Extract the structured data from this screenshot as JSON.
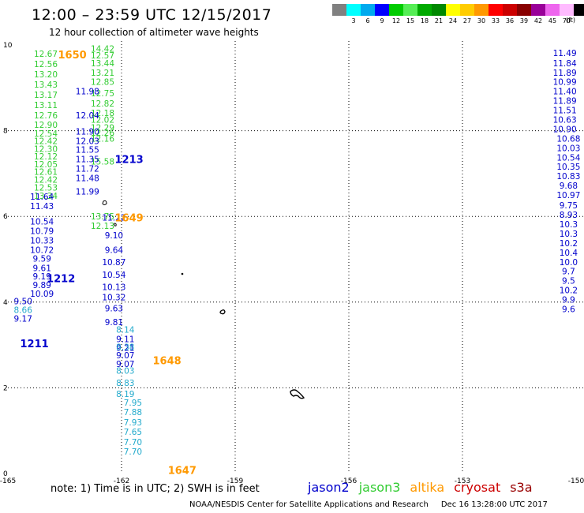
{
  "header": {
    "title": "12:00 – 23:59 UTC 12/15/2017",
    "subtitle": "12 hour collection of altimeter wave heights"
  },
  "scale": {
    "unit": "(ft)",
    "swatches": [
      {
        "color": "#808080",
        "label": ""
      },
      {
        "color": "#00ffff",
        "label": "3"
      },
      {
        "color": "#00aaee",
        "label": "6"
      },
      {
        "color": "#0000ff",
        "label": "9"
      },
      {
        "color": "#00cc00",
        "label": "12"
      },
      {
        "color": "#55ee55",
        "label": "15"
      },
      {
        "color": "#00aa00",
        "label": "18"
      },
      {
        "color": "#008800",
        "label": "21"
      },
      {
        "color": "#ffff00",
        "label": "24"
      },
      {
        "color": "#ffcc00",
        "label": "27"
      },
      {
        "color": "#ff9900",
        "label": "30"
      },
      {
        "color": "#ff0000",
        "label": "33"
      },
      {
        "color": "#cc0000",
        "label": "36"
      },
      {
        "color": "#880000",
        "label": "39"
      },
      {
        "color": "#990099",
        "label": "42"
      },
      {
        "color": "#ee66ee",
        "label": "45"
      },
      {
        "color": "#ffbbff",
        "label": "70"
      },
      {
        "color": "#000000",
        "label": ""
      }
    ]
  },
  "map_data": {
    "lon_labels": [
      "-165",
      "-162",
      "-159",
      "-156",
      "-153",
      "-150"
    ],
    "lat_labels": [
      "0",
      "2",
      "4",
      "6",
      "8",
      "10"
    ],
    "colors": {
      "jason2": "#0000cc",
      "jason3": "#33cc33",
      "altika": "#ff9900",
      "cryosat": "#cc0000",
      "s3a": "#990000",
      "cyan": "#22aacc"
    },
    "tracks": [
      {
        "source": "jason3",
        "lon": -164.0,
        "lats": [
          9.8,
          9.56,
          9.32,
          9.08,
          8.84,
          8.6,
          8.36,
          8.14,
          7.94,
          7.76,
          7.58,
          7.4,
          7.22,
          7.04,
          6.86,
          6.68,
          6.48
        ],
        "values": [
          "12.67",
          "12.56",
          "13.20",
          "13.43",
          "13.17",
          "13.11",
          "12.76",
          "12.90",
          "12.54",
          "12.42",
          "12.30",
          "12.12",
          "12.05",
          "12.61",
          "12.42",
          "12.53",
          "13.34"
        ]
      },
      {
        "source": "jason3",
        "lon": -162.5,
        "lats": [
          9.92,
          9.76,
          9.58,
          9.36,
          9.14,
          8.88,
          8.64,
          8.42,
          8.26,
          8.08
        ],
        "values": [
          "14.42",
          "12.57",
          "13.44",
          "13.21",
          "12.85",
          "12.75",
          "12.82",
          "12.18",
          "12.02",
          "12.29"
        ]
      },
      {
        "source": "jason3",
        "lon": -162.5,
        "lats": [
          7.96,
          7.82,
          7.28,
          6.0,
          5.78
        ],
        "values": [
          "12.26",
          "12.16",
          "15.58",
          "13.75",
          "12.13"
        ]
      },
      {
        "source": "jason2",
        "lon": -162.9,
        "lats": [
          8.92,
          8.36,
          7.98,
          7.76,
          7.56,
          7.34,
          7.12,
          6.9,
          6.58
        ],
        "values": [
          "11.98",
          "12.04",
          "11.90",
          "12.03",
          "11.55",
          "11.35",
          "11.72",
          "11.48",
          "11.99"
        ]
      },
      {
        "source": "jason2",
        "lon": -164.1,
        "lats": [
          6.46,
          6.24,
          5.88,
          5.66,
          5.44,
          5.22,
          5.02,
          4.8,
          4.6,
          4.4,
          4.2
        ],
        "values": [
          "11.64",
          "11.43",
          "10.54",
          "10.79",
          "10.33",
          "10.72",
          "9.59",
          "9.61",
          "9.19",
          "9.89",
          "10.09"
        ]
      },
      {
        "source": "jason2",
        "lon": -164.6,
        "lats": [
          4.02,
          3.62
        ],
        "values": [
          "9.50",
          "9.17"
        ]
      },
      {
        "source": "cyan",
        "lon": -164.6,
        "lats": [
          3.82
        ],
        "values": [
          "8.66"
        ]
      },
      {
        "source": "jason2",
        "lon": -162.2,
        "lats": [
          5.98,
          5.56,
          5.22,
          4.94,
          4.64,
          4.36,
          4.12,
          3.86,
          3.54
        ],
        "values": [
          "11.22",
          "9.10",
          "9.64",
          "10.87",
          "10.54",
          "10.13",
          "10.32",
          "9.63",
          "9.81"
        ]
      },
      {
        "source": "jason2",
        "lon": -161.9,
        "lats": [
          3.14,
          2.94,
          2.76,
          2.56
        ],
        "values": [
          "9.11",
          "9.21",
          "9.07",
          "9.07"
        ]
      },
      {
        "source": "cyan",
        "lon": -161.9,
        "lats": [
          3.36,
          2.96,
          2.4,
          2.12,
          1.86
        ],
        "values": [
          "8.14",
          "8.38",
          "8.03",
          "8.83",
          "8.19"
        ]
      },
      {
        "source": "cyan",
        "lon": -161.7,
        "lats": [
          1.66,
          1.44,
          1.2,
          0.98,
          0.74,
          0.52
        ],
        "values": [
          "7.95",
          "7.88",
          "7.93",
          "7.65",
          "7.70",
          "7.70"
        ]
      },
      {
        "source": "jason2",
        "lon": -150.3,
        "lats": [
          9.82,
          9.58,
          9.36,
          9.14,
          8.92,
          8.7,
          8.48,
          8.26,
          8.04
        ],
        "values": [
          "11.49",
          "11.84",
          "11.89",
          "10.99",
          "11.40",
          "11.89",
          "11.51",
          "10.63",
          "10.90"
        ]
      },
      {
        "source": "jason2",
        "lon": -150.2,
        "lats": [
          7.82,
          7.6,
          7.38,
          7.16,
          6.94,
          6.72,
          6.5,
          6.26,
          6.04,
          5.82,
          5.6,
          5.38,
          5.16,
          4.94,
          4.72,
          4.5,
          4.28,
          4.06,
          3.84
        ],
        "values": [
          "10.68",
          "10.03",
          "10.54",
          "10.35",
          "10.83",
          "9.68",
          "10.97",
          "9.75",
          "8.93",
          "10.3",
          "10.3",
          "10.2",
          "10.4",
          "10.0",
          "9.7",
          "9.5",
          "10.2",
          "9.9",
          "9.6"
        ]
      }
    ],
    "time_labels": [
      {
        "text": "1650",
        "source": "altika",
        "lon": -163.3,
        "lat": 9.78
      },
      {
        "text": "1213",
        "source": "jason2",
        "lon": -161.8,
        "lat": 7.34
      },
      {
        "text": "1649",
        "source": "altika",
        "lon": -161.8,
        "lat": 5.98
      },
      {
        "text": "1212",
        "source": "jason2",
        "lon": -163.6,
        "lat": 4.56
      },
      {
        "text": "1211",
        "source": "jason2",
        "lon": -164.3,
        "lat": 3.04
      },
      {
        "text": "1648",
        "source": "altika",
        "lon": -160.8,
        "lat": 2.64
      },
      {
        "text": "1647",
        "source": "altika",
        "lon": -160.4,
        "lat": 0.08
      }
    ]
  },
  "footer": {
    "note": "note:  1) Time is in UTC; 2) SWH is in feet",
    "satellites": [
      {
        "name": "jason2",
        "color": "#0000cc"
      },
      {
        "name": "jason3",
        "color": "#33cc33"
      },
      {
        "name": "altika",
        "color": "#ff9900"
      },
      {
        "name": "cryosat",
        "color": "#cc0000"
      },
      {
        "name": "s3a",
        "color": "#990000"
      }
    ],
    "credit": "NOAA/NESDIS Center for Satellite Applications and Research",
    "timestamp": "Dec 16 13:28:00 UTC 2017"
  }
}
